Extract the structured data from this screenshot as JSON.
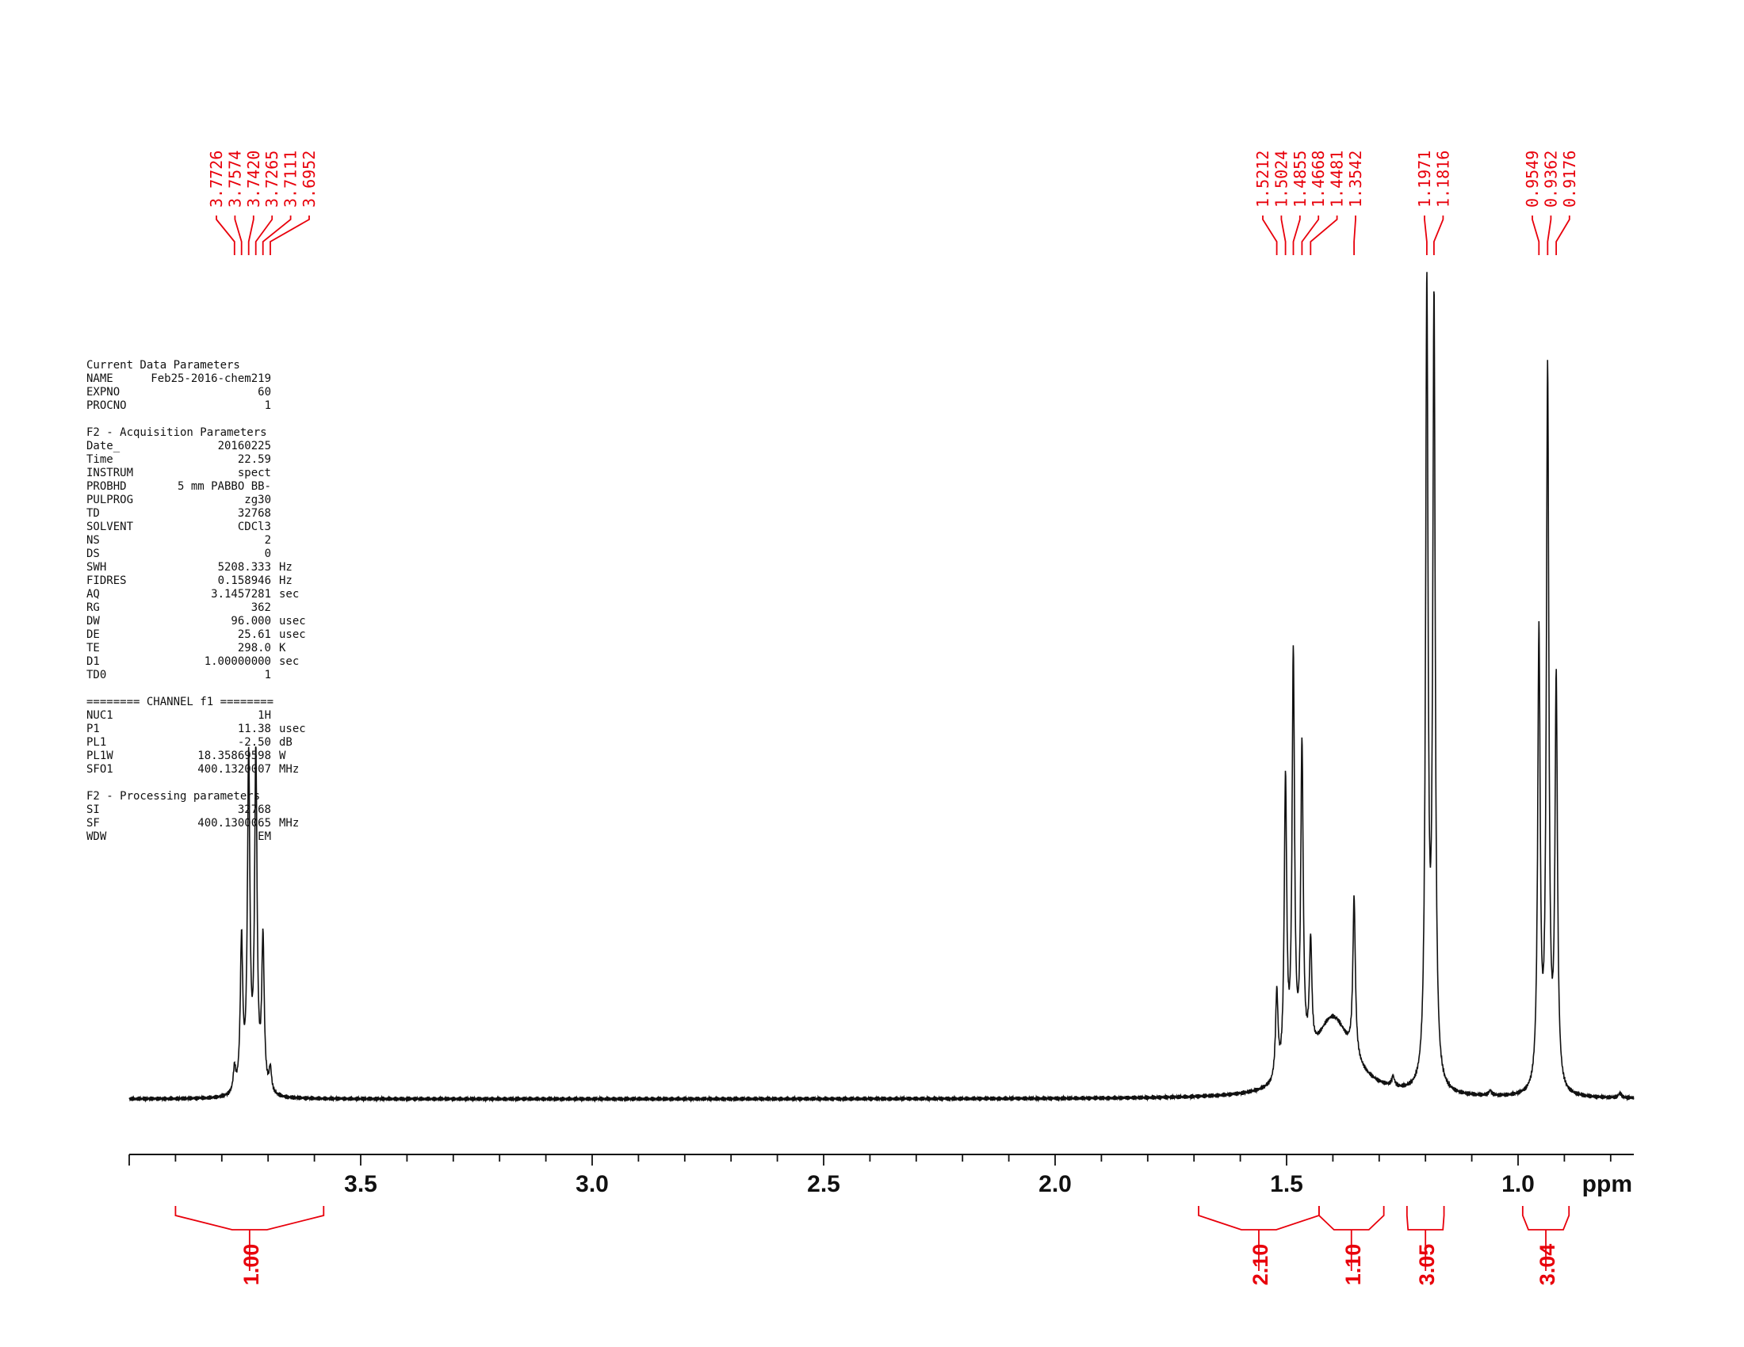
{
  "params": {
    "groups": [
      {
        "title": "Current Data Parameters",
        "rows": [
          {
            "key": "NAME",
            "value": "Feb25-2016-chem219"
          },
          {
            "key": "EXPNO",
            "value": "60"
          },
          {
            "key": "PROCNO",
            "value": "1"
          }
        ]
      },
      {
        "title": "F2 - Acquisition Parameters",
        "rows": [
          {
            "key": "Date_",
            "value": "20160225"
          },
          {
            "key": "Time",
            "value": "22.59"
          },
          {
            "key": "INSTRUM",
            "value": "spect"
          },
          {
            "key": "PROBHD",
            "value": "5 mm PABBO BB-"
          },
          {
            "key": "PULPROG",
            "value": "zg30"
          },
          {
            "key": "TD",
            "value": "32768"
          },
          {
            "key": "SOLVENT",
            "value": "CDCl3"
          },
          {
            "key": "NS",
            "value": "2"
          },
          {
            "key": "DS",
            "value": "0"
          },
          {
            "key": "SWH",
            "value": "5208.333",
            "unit": "Hz"
          },
          {
            "key": "FIDRES",
            "value": "0.158946",
            "unit": "Hz"
          },
          {
            "key": "AQ",
            "value": "3.1457281",
            "unit": "sec"
          },
          {
            "key": "RG",
            "value": "362"
          },
          {
            "key": "DW",
            "value": "96.000",
            "unit": "usec"
          },
          {
            "key": "DE",
            "value": "25.61",
            "unit": "usec"
          },
          {
            "key": "TE",
            "value": "298.0",
            "unit": "K"
          },
          {
            "key": "D1",
            "value": "1.00000000",
            "unit": "sec"
          },
          {
            "key": "TD0",
            "value": "1"
          }
        ]
      },
      {
        "title": "======== CHANNEL f1 ========",
        "rows": [
          {
            "key": "NUC1",
            "value": "1H"
          },
          {
            "key": "P1",
            "value": "11.38",
            "unit": "usec"
          },
          {
            "key": "PL1",
            "value": "-2.50",
            "unit": "dB"
          },
          {
            "key": "PL1W",
            "value": "18.35869598",
            "unit": "W"
          },
          {
            "key": "SFO1",
            "value": "400.1320007",
            "unit": "MHz"
          }
        ]
      },
      {
        "title": "F2 - Processing parameters",
        "rows": [
          {
            "key": "SI",
            "value": "32768"
          },
          {
            "key": "SF",
            "value": "400.1300065",
            "unit": "MHz"
          },
          {
            "key": "WDW",
            "value": "EM"
          }
        ]
      }
    ]
  },
  "chart_data": {
    "type": "line",
    "xlabel": "ppm",
    "xlim": [
      4.0,
      0.75
    ],
    "x_reversed": true,
    "ticks_major": [
      3.5,
      3.0,
      2.5,
      2.0,
      1.5,
      1.0
    ],
    "tick_labels": [
      "3.5",
      "3.0",
      "2.5",
      "2.0",
      "1.5",
      "1.0"
    ],
    "peaks": [
      {
        "ppm": 3.7726,
        "intensity": 0.03
      },
      {
        "ppm": 3.7574,
        "intensity": 0.19
      },
      {
        "ppm": 3.742,
        "intensity": 0.42
      },
      {
        "ppm": 3.7265,
        "intensity": 0.42
      },
      {
        "ppm": 3.7111,
        "intensity": 0.19
      },
      {
        "ppm": 3.6952,
        "intensity": 0.03
      },
      {
        "ppm": 1.5212,
        "intensity": 0.11
      },
      {
        "ppm": 1.5024,
        "intensity": 0.37
      },
      {
        "ppm": 1.4855,
        "intensity": 0.52
      },
      {
        "ppm": 1.4668,
        "intensity": 0.4
      },
      {
        "ppm": 1.4481,
        "intensity": 0.14
      },
      {
        "ppm": 1.3542,
        "intensity": 0.2
      },
      {
        "ppm": 1.1971,
        "intensity": 1.0
      },
      {
        "ppm": 1.1816,
        "intensity": 0.98
      },
      {
        "ppm": 0.9549,
        "intensity": 0.57
      },
      {
        "ppm": 0.9362,
        "intensity": 0.9
      },
      {
        "ppm": 0.9176,
        "intensity": 0.51
      }
    ],
    "peak_label_groups": [
      {
        "labels": [
          "3.7726",
          "3.7574",
          "3.7420",
          "3.7265",
          "3.7111",
          "3.6952"
        ]
      },
      {
        "labels": [
          "1.5212",
          "1.5024",
          "1.4855",
          "1.4668",
          "1.4481",
          "1.3542"
        ]
      },
      {
        "labels": [
          "1.1971",
          "1.1816"
        ]
      },
      {
        "labels": [
          "0.9549",
          "0.9362",
          "0.9176"
        ]
      }
    ],
    "integrals": [
      {
        "from": 3.9,
        "to": 3.58,
        "value": "1.00"
      },
      {
        "from": 1.69,
        "to": 1.43,
        "value": "2.10"
      },
      {
        "from": 1.43,
        "to": 1.29,
        "value": "1.10"
      },
      {
        "from": 1.24,
        "to": 1.16,
        "value": "3.05"
      },
      {
        "from": 0.99,
        "to": 0.89,
        "value": "3.04"
      }
    ]
  }
}
